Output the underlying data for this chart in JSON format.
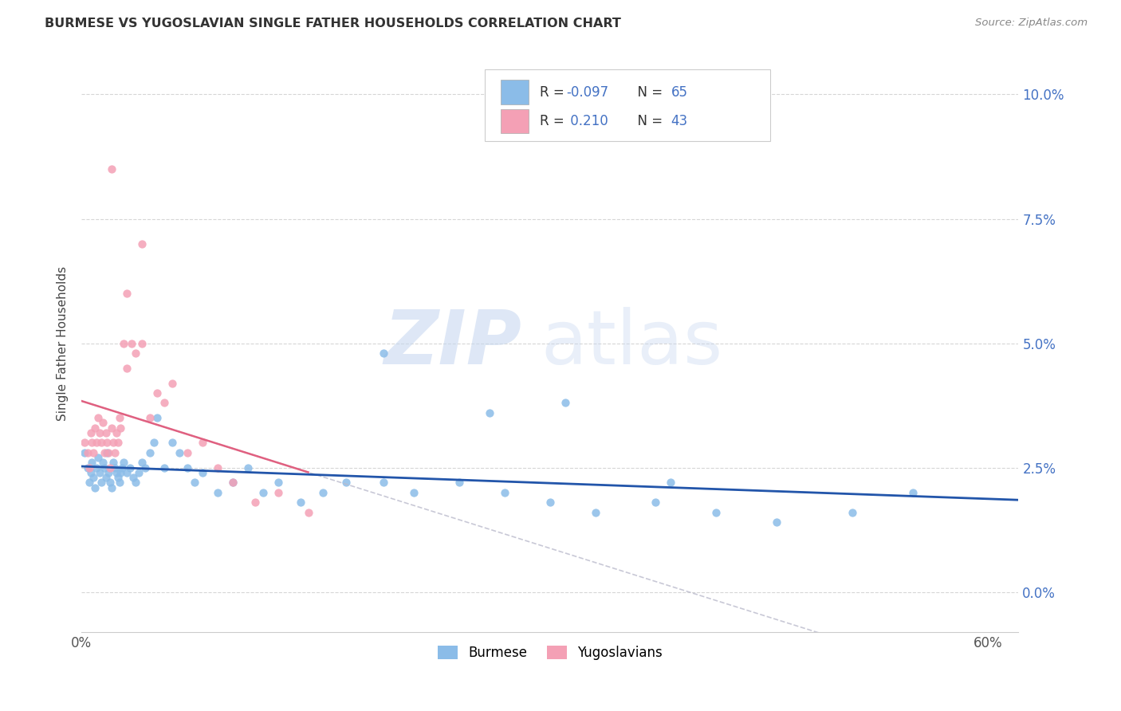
{
  "title": "BURMESE VS YUGOSLAVIAN SINGLE FATHER HOUSEHOLDS CORRELATION CHART",
  "source": "Source: ZipAtlas.com",
  "ylabel": "Single Father Households",
  "burmese_color": "#8BBCE8",
  "yugoslavian_color": "#F4A0B5",
  "burmese_line_color": "#2255AA",
  "yugoslavian_line_color": "#E06080",
  "burmese_R": -0.097,
  "burmese_N": 65,
  "yugoslavian_R": 0.21,
  "yugoslavian_N": 43,
  "legend_color": "#4472C4",
  "ytick_color": "#4472C4",
  "xlim": [
    0.0,
    0.62
  ],
  "ylim": [
    -0.008,
    0.108
  ],
  "y_ticks": [
    0.0,
    0.025,
    0.05,
    0.075,
    0.1
  ],
  "x_ticks": [
    0.0,
    0.1,
    0.2,
    0.3,
    0.4,
    0.5,
    0.6
  ],
  "watermark_zip_color": "#C8D8F0",
  "watermark_atlas_color": "#C8D8F0",
  "burmese_x": [
    0.002,
    0.004,
    0.005,
    0.006,
    0.007,
    0.008,
    0.009,
    0.01,
    0.011,
    0.012,
    0.013,
    0.014,
    0.015,
    0.016,
    0.017,
    0.018,
    0.019,
    0.02,
    0.021,
    0.022,
    0.023,
    0.024,
    0.025,
    0.026,
    0.027,
    0.028,
    0.03,
    0.032,
    0.034,
    0.036,
    0.038,
    0.04,
    0.042,
    0.045,
    0.048,
    0.05,
    0.055,
    0.06,
    0.065,
    0.07,
    0.075,
    0.08,
    0.09,
    0.1,
    0.11,
    0.12,
    0.13,
    0.145,
    0.16,
    0.175,
    0.2,
    0.22,
    0.25,
    0.28,
    0.31,
    0.34,
    0.38,
    0.42,
    0.46,
    0.51,
    0.2,
    0.27,
    0.32,
    0.39,
    0.55
  ],
  "burmese_y": [
    0.028,
    0.025,
    0.022,
    0.024,
    0.026,
    0.023,
    0.021,
    0.025,
    0.027,
    0.024,
    0.022,
    0.026,
    0.025,
    0.023,
    0.028,
    0.024,
    0.022,
    0.021,
    0.026,
    0.025,
    0.024,
    0.023,
    0.022,
    0.024,
    0.025,
    0.026,
    0.024,
    0.025,
    0.023,
    0.022,
    0.024,
    0.026,
    0.025,
    0.028,
    0.03,
    0.035,
    0.025,
    0.03,
    0.028,
    0.025,
    0.022,
    0.024,
    0.02,
    0.022,
    0.025,
    0.02,
    0.022,
    0.018,
    0.02,
    0.022,
    0.022,
    0.02,
    0.022,
    0.02,
    0.018,
    0.016,
    0.018,
    0.016,
    0.014,
    0.016,
    0.048,
    0.036,
    0.038,
    0.022,
    0.02
  ],
  "yugoslavian_x": [
    0.002,
    0.004,
    0.005,
    0.006,
    0.007,
    0.008,
    0.009,
    0.01,
    0.011,
    0.012,
    0.013,
    0.014,
    0.015,
    0.016,
    0.017,
    0.018,
    0.019,
    0.02,
    0.021,
    0.022,
    0.023,
    0.024,
    0.025,
    0.026,
    0.028,
    0.03,
    0.033,
    0.036,
    0.04,
    0.045,
    0.05,
    0.055,
    0.06,
    0.07,
    0.08,
    0.09,
    0.1,
    0.115,
    0.13,
    0.15,
    0.02,
    0.03,
    0.04
  ],
  "yugoslavian_y": [
    0.03,
    0.028,
    0.025,
    0.032,
    0.03,
    0.028,
    0.033,
    0.03,
    0.035,
    0.032,
    0.03,
    0.034,
    0.028,
    0.032,
    0.03,
    0.028,
    0.025,
    0.033,
    0.03,
    0.028,
    0.032,
    0.03,
    0.035,
    0.033,
    0.05,
    0.045,
    0.05,
    0.048,
    0.05,
    0.035,
    0.04,
    0.038,
    0.042,
    0.028,
    0.03,
    0.025,
    0.022,
    0.018,
    0.02,
    0.016,
    0.085,
    0.06,
    0.07
  ]
}
